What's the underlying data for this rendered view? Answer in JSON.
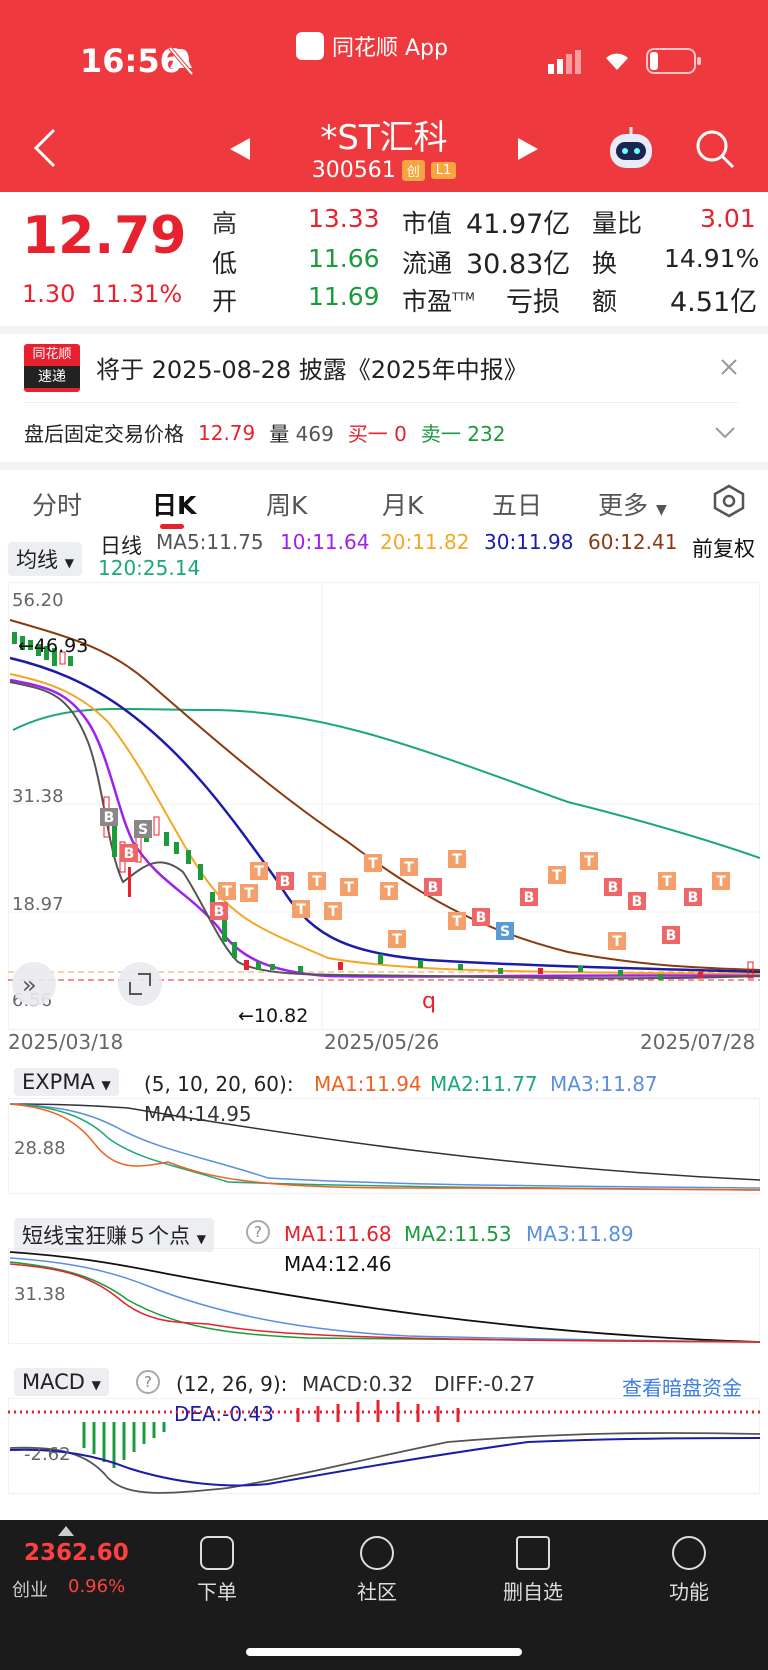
{
  "status": {
    "time": "16:56",
    "app_name": "同花顺 App"
  },
  "stock": {
    "name": "*ST汇科",
    "code": "300561",
    "tag_board": "创",
    "tag_level": "L1"
  },
  "quote": {
    "price": "12.79",
    "change": "1.30",
    "change_pct": "11.31%",
    "high_label": "高",
    "high": "13.33",
    "low_label": "低",
    "low": "11.66",
    "open_label": "开",
    "open": "11.69",
    "mcap_label": "市值",
    "mcap": "41.97亿",
    "float_label": "流通",
    "float": "30.83亿",
    "pe_label": "市盈",
    "pe_sup": "TTM",
    "pe": "亏损",
    "vol_ratio_label": "量比",
    "vol_ratio": "3.01",
    "turnover_label": "换",
    "turnover": "14.91%",
    "amount_label": "额",
    "amount": "4.51亿"
  },
  "notice": {
    "logo_top": "同花顺",
    "logo_bottom": "速递",
    "text": "将于 2025-08-28 披露《2025年中报》",
    "after_hours_label": "盘后固定交易价格",
    "after_hours_price": "12.79",
    "vol_label": "量",
    "vol": "469",
    "buy1_label": "买一",
    "buy1": "0",
    "sell1_label": "卖一",
    "sell1": "232"
  },
  "tabs": [
    "分时",
    "日K",
    "周K",
    "月K",
    "五日",
    "更多"
  ],
  "kline": {
    "ma_selector": "均线",
    "line_type": "日线",
    "ma5": "MA5:11.75",
    "ma10": "10:11.64",
    "ma20": "20:11.82",
    "ma30": "30:11.98",
    "ma60": "60:12.41",
    "ma120": "120:25.14",
    "adjust": "前复权",
    "y_labels": [
      "56.20",
      "31.38",
      "18.97",
      "6.56"
    ],
    "high_marker": "←46.93",
    "low_marker": "←10.82",
    "q_marker": "q",
    "dates": [
      "2025/03/18",
      "2025/05/26",
      "2025/07/28"
    ],
    "colors": {
      "ma5": "#555555",
      "ma10": "#a020f0",
      "ma20": "#f5a623",
      "ma30": "#1c1ca8",
      "ma60": "#8b3a0f",
      "ma120": "#1aa87a"
    }
  },
  "expma": {
    "selector": "EXPMA",
    "params": "(5, 10, 20, 60):",
    "ma1": "MA1:11.94",
    "ma2": "MA2:11.77",
    "ma3": "MA3:11.87",
    "ma4": "MA4:14.95",
    "y_label": "28.88"
  },
  "dxb": {
    "selector": "短线宝狂赚５个点",
    "help": "?",
    "ma1": "MA1:11.68",
    "ma2": "MA2:11.53",
    "ma3": "MA3:11.89",
    "ma4": "MA4:12.46",
    "y_label": "31.38"
  },
  "macd": {
    "selector": "MACD",
    "help": "?",
    "params": "(12, 26, 9):",
    "macd": "MACD:0.32",
    "diff": "DIFF:-0.27",
    "dea": "DEA:-0.43",
    "link": "查看暗盘资金",
    "y_label": "-2.62"
  },
  "bottom": {
    "index_value": "2362.60",
    "index_name": "创业",
    "index_pct": "0.96%",
    "nav": [
      "下单",
      "社区",
      "删自选",
      "功能"
    ]
  }
}
